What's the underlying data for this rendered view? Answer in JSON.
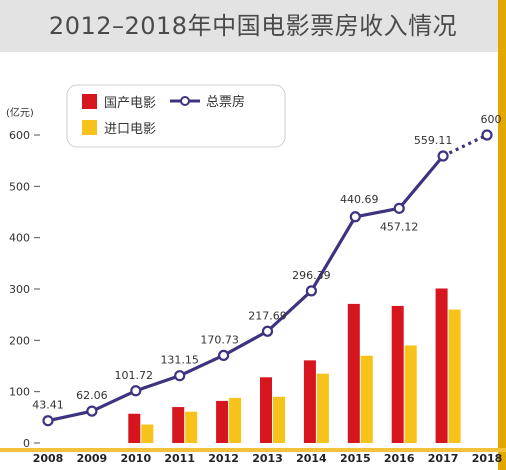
{
  "title": "2012–2018年中国电影票房收入情况",
  "chart_data": {
    "type": "bar",
    "title": "2012–2018年中国电影票房收入情况",
    "ylabel": "(亿元)",
    "xlabel": "",
    "ylim": [
      0,
      600
    ],
    "yticks": [
      0,
      100,
      200,
      300,
      400,
      500,
      600
    ],
    "categories": [
      "2008",
      "2009",
      "2010",
      "2011",
      "2012",
      "2013",
      "2014",
      "2015",
      "2016",
      "2017",
      "2018"
    ],
    "grid": false,
    "legend_position": "top-left",
    "series": [
      {
        "name": "国产电影",
        "kind": "bar",
        "color": "#d7151f",
        "values": [
          null,
          null,
          57,
          70,
          82,
          128,
          161,
          271,
          267,
          301,
          null
        ]
      },
      {
        "name": "进口电影",
        "kind": "bar",
        "color": "#f7c21a",
        "values": [
          null,
          null,
          36,
          61,
          88,
          90,
          135,
          170,
          190,
          260,
          null
        ]
      },
      {
        "name": "总票房",
        "kind": "line",
        "color": "#3d3480",
        "values": [
          43.41,
          62.06,
          101.72,
          131.15,
          170.73,
          217.69,
          296.39,
          440.69,
          457.12,
          559.11,
          600
        ],
        "labels": [
          "43.41",
          "62.06",
          "101.72",
          "131.15",
          "170.73",
          "217.69",
          "296.39",
          "440.69",
          "457.12",
          "559.11",
          "600"
        ],
        "projected_from": "2017"
      }
    ]
  },
  "colors": {
    "accent": "#d7151f",
    "axis": "#555555",
    "title_band": "#e3e3e3",
    "right_stripe": "#e2a800"
  }
}
